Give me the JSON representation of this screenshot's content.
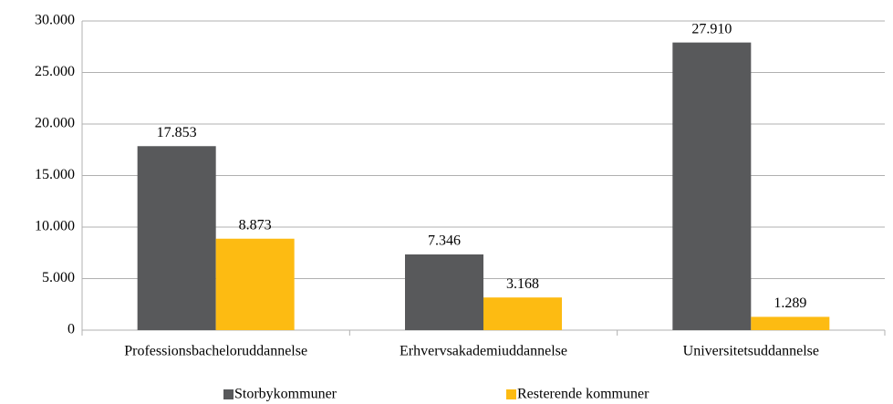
{
  "chart_data": {
    "type": "bar",
    "categories": [
      "Professionsbacheloruddannelse",
      "Erhvervsakademiuddannelse",
      "Universitetsuddannelse"
    ],
    "series": [
      {
        "name": "Storbykommuner",
        "color": "#58595b",
        "values": [
          17853,
          7346,
          27910
        ],
        "value_labels": [
          "17.853",
          "7.346",
          "27.910"
        ]
      },
      {
        "name": "Resterende kommuner",
        "color": "#fdbb12",
        "values": [
          8873,
          3168,
          1289
        ],
        "value_labels": [
          "8.873",
          "3.168",
          "1.289"
        ]
      }
    ],
    "ylim": [
      0,
      30000
    ],
    "yticks": [
      0,
      {
        "value": 5000,
        "label": "5.000"
      },
      {
        "value": 10000,
        "label": "10.000"
      },
      {
        "value": 15000,
        "label": "15.000"
      },
      {
        "value": 20000,
        "label": "20.000"
      },
      {
        "value": 25000,
        "label": "25.000"
      },
      {
        "value": 30000,
        "label": "30.000"
      }
    ],
    "grid": true,
    "legend": "bottom"
  }
}
